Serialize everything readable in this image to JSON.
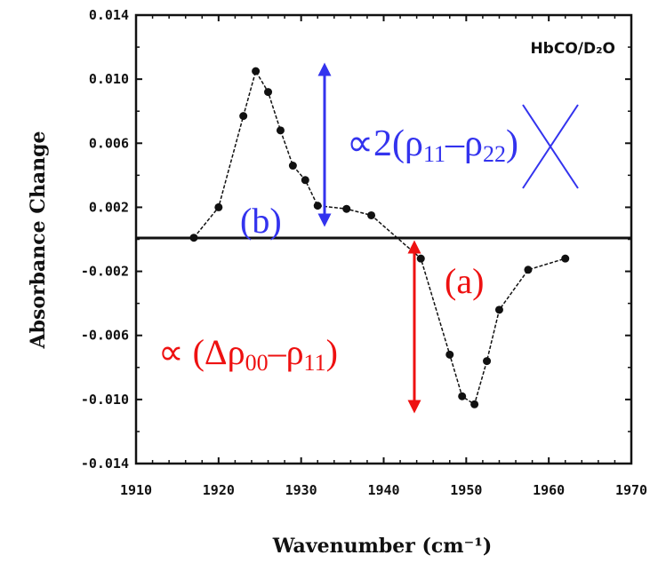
{
  "chart_data": {
    "type": "line",
    "title": "",
    "xlabel": "Wavenumber (cm⁻¹)",
    "ylabel": "Absorbance Change",
    "xlim": [
      1910,
      1970
    ],
    "ylim": [
      -0.014,
      0.014
    ],
    "x_ticks": [
      "1910",
      "1920",
      "1930",
      "1940",
      "1950",
      "1960",
      "1970"
    ],
    "y_ticks": [
      "0.014",
      "0.010",
      "0.006",
      "0.002",
      "-0.002",
      "-0.006",
      "-0.010",
      "-0.014"
    ],
    "grid": false,
    "legend": "none",
    "baseline": 0,
    "series": [
      {
        "name": "HbCO/D₂O",
        "x": [
          1917,
          1920,
          1923,
          1924.5,
          1926,
          1927.5,
          1929,
          1930.5,
          1932,
          1935.5,
          1938.5,
          1944.5,
          1948,
          1949.5,
          1951,
          1952.5,
          1954,
          1957.5,
          1962
        ],
        "y": [
          0.0001,
          0.002,
          0.0077,
          0.0105,
          0.0092,
          0.0068,
          0.0046,
          0.0037,
          0.0021,
          0.0019,
          0.0015,
          -0.0012,
          -0.0072,
          -0.0098,
          -0.0103,
          -0.0076,
          -0.0044,
          -0.0019,
          -0.0012
        ]
      }
    ],
    "annotations": {
      "sample_label": "HbCO/D₂O",
      "label_b": "(b)",
      "label_a": "(a)",
      "blue_expr": {
        "prefix": "∝2(ρ",
        "sub1": "11",
        "mid": "–ρ",
        "sub2": "22",
        "suffix": ")"
      },
      "red_expr": {
        "prefix": "∝ (Δρ",
        "sub1": "00",
        "mid": "–ρ",
        "sub2": "11",
        "suffix": ")"
      }
    },
    "colors": {
      "blue": "#3333ee",
      "red": "#ee1111",
      "axis": "#111111"
    }
  }
}
